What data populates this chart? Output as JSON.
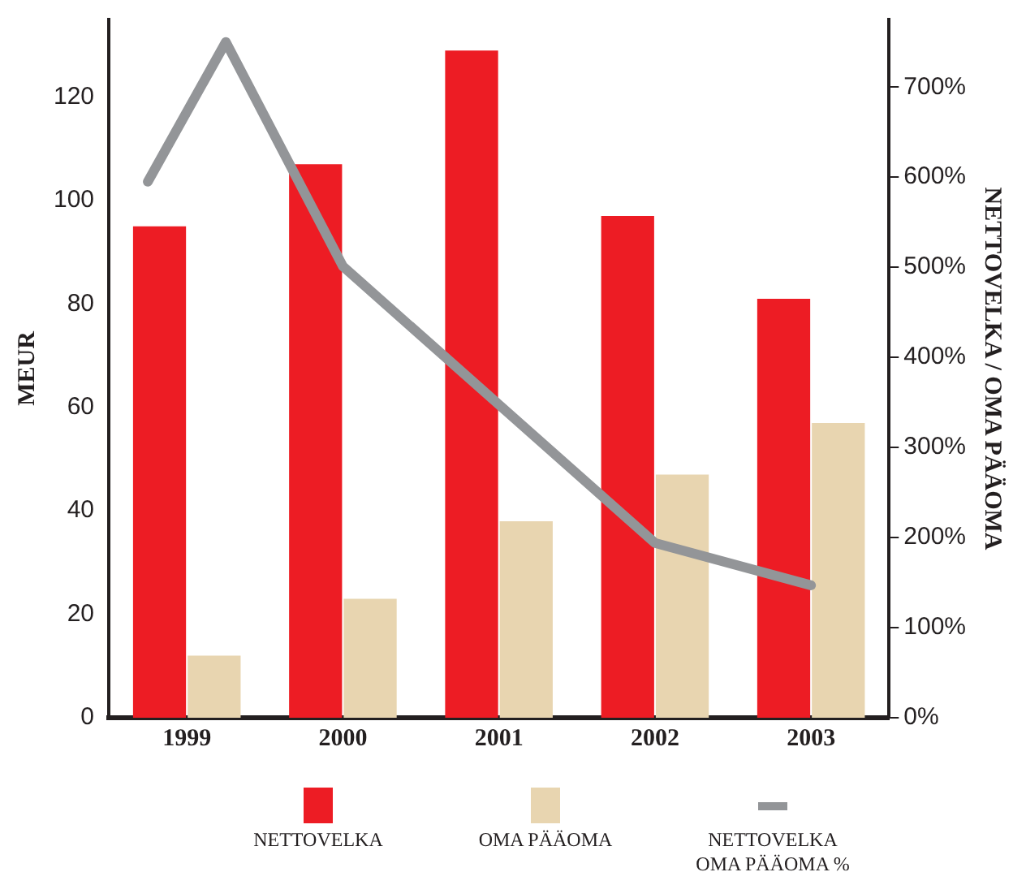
{
  "chart_data": {
    "type": "bar",
    "ylabel": "MEUR",
    "y2label": "NETTOVELKA / OMA PÄÄOMA",
    "x": [
      1999,
      2000,
      2001,
      2002,
      2003
    ],
    "xlim": [
      1998.5,
      2003.5
    ],
    "xticks": [
      1999,
      2000,
      2001,
      2002,
      2003
    ],
    "series": [
      {
        "name": "NETTOVELKA",
        "color": "#ed1c24",
        "values": [
          95,
          107,
          129,
          97,
          81
        ]
      },
      {
        "name": "OMA PÄÄOMA",
        "color": "#e8d5b0",
        "values": [
          12,
          23,
          38,
          47,
          57
        ]
      },
      {
        "name": "NETTOVELKA OMA PÄÄOMA %",
        "type": "line",
        "axis": "y2",
        "color": "#939598",
        "x": [
          1998.75,
          1999.25,
          2000,
          2002,
          2003
        ],
        "values": [
          595,
          750,
          501,
          194,
          147
        ]
      }
    ],
    "ylim": [
      0,
      135
    ],
    "yticks": [
      0,
      20,
      40,
      60,
      80,
      100,
      120
    ],
    "y2lim": [
      0,
      775
    ],
    "y2ticks": [
      {
        "value": 0,
        "label": "0%"
      },
      {
        "value": 100,
        "label": "100%"
      },
      {
        "value": 200,
        "label": "200%"
      },
      {
        "value": 300,
        "label": "300%"
      },
      {
        "value": 400,
        "label": "400%"
      },
      {
        "value": 500,
        "label": "500%"
      },
      {
        "value": 600,
        "label": "600%"
      },
      {
        "value": 700,
        "label": "700%"
      }
    ],
    "grid": false,
    "legend": "bottom",
    "marker": "none"
  }
}
